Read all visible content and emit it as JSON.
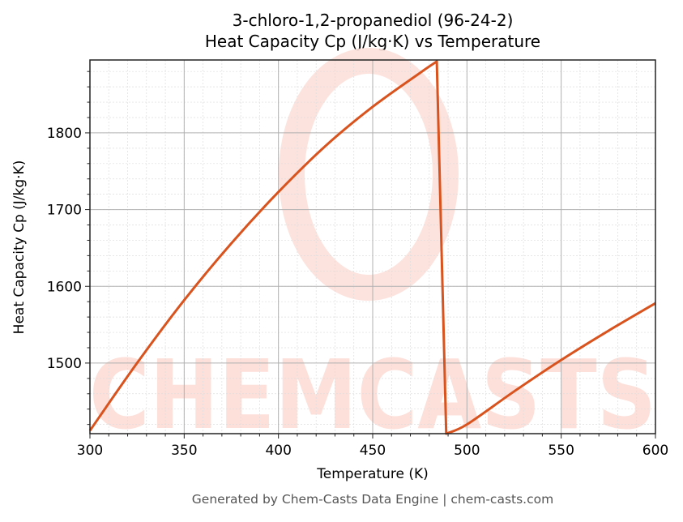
{
  "chart": {
    "title_line1": "3-chloro-1,2-propanediol (96-24-2)",
    "title_line2": "Heat Capacity Cp (J/kg·K) vs Temperature",
    "xlabel": "Temperature (K)",
    "ylabel": "Heat Capacity Cp (J/kg·K)",
    "footer": "Generated by Chem-Casts Data Engine | chem-casts.com",
    "watermark": "CHEMCASTS",
    "line_color": "#d9531e",
    "watermark_color": "#fde0da"
  },
  "chart_data": {
    "type": "line",
    "title": "3-chloro-1,2-propanediol (96-24-2) Heat Capacity Cp (J/kg·K) vs Temperature",
    "xlabel": "Temperature (K)",
    "ylabel": "Heat Capacity Cp (J/kg·K)",
    "xlim": [
      300,
      600
    ],
    "ylim": [
      1408,
      1895
    ],
    "x_ticks": [
      300,
      350,
      400,
      450,
      500,
      550,
      600
    ],
    "y_ticks": [
      1500,
      1600,
      1700,
      1800
    ],
    "grid": true,
    "legend": null,
    "series": [
      {
        "name": "Cp",
        "x": [
          300,
          325,
          350,
          375,
          400,
          425,
          450,
          475,
          484,
          489,
          500,
          525,
          550,
          575,
          600
        ],
        "y": [
          1412,
          1500,
          1582,
          1656,
          1723,
          1783,
          1834,
          1878,
          1893,
          1408,
          1420,
          1463,
          1504,
          1542,
          1578
        ]
      }
    ]
  }
}
